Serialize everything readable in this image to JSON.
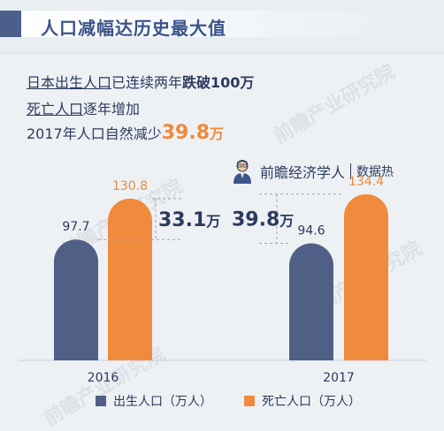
{
  "header": {
    "title": "人口减幅达历史最大值"
  },
  "summary": {
    "line1_prefix": "日本出生人口",
    "line1_mid": "已连续两年",
    "line1_bold": "跌破100万",
    "line2_prefix": "死亡人口",
    "line2_rest": "逐年增加",
    "line3_text": "2017年人口自然减少",
    "line3_num": "39.8",
    "line3_unit": "万"
  },
  "brand": {
    "name": "前瞻经济学人",
    "sub": "数据热"
  },
  "watermark": "前瞻产业研究院",
  "chart_data": {
    "type": "bar",
    "categories": [
      "2016",
      "2017"
    ],
    "series": [
      {
        "name": "出生人口（万人）",
        "values": [
          97.7,
          94.6
        ],
        "color": "#4f5f86"
      },
      {
        "name": "死亡人口（万人）",
        "values": [
          130.8,
          134.4
        ],
        "color": "#f08a3d"
      }
    ],
    "differences": [
      {
        "value": "33.1",
        "unit": "万"
      },
      {
        "value": "39.8",
        "unit": "万"
      }
    ],
    "legend_position": "bottom",
    "grid": false
  }
}
